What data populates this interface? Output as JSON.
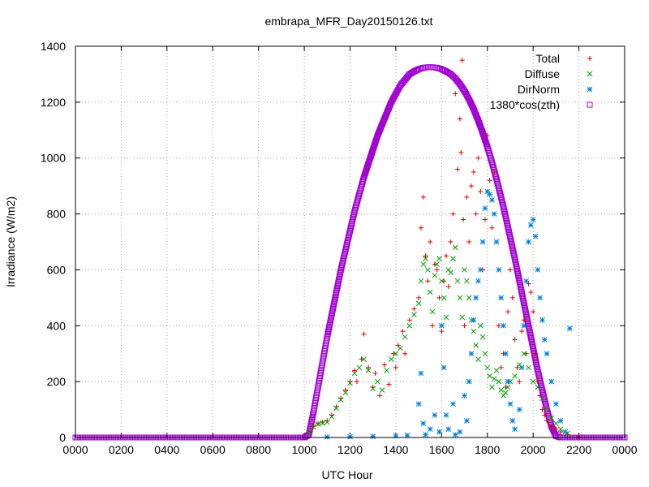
{
  "chart_data": {
    "type": "scatter",
    "title": "embrapa_MFR_Day20150126.txt",
    "xlabel": "UTC Hour",
    "ylabel": "Irradiance (W/m2)",
    "xlim": [
      0,
      24
    ],
    "ylim": [
      0,
      1400
    ],
    "x_ticks": [
      0,
      2,
      4,
      6,
      8,
      10,
      12,
      14,
      16,
      18,
      20,
      22,
      24
    ],
    "x_tick_labels": [
      "0000",
      "0200",
      "0400",
      "0600",
      "0800",
      "1000",
      "1200",
      "1400",
      "1600",
      "1800",
      "2000",
      "2200",
      "0000"
    ],
    "y_ticks": [
      0,
      200,
      400,
      600,
      800,
      1000,
      1200,
      1400
    ],
    "y_tick_labels": [
      "0",
      "200",
      "400",
      "600",
      "800",
      "1000",
      "1200",
      "1400"
    ],
    "grid": true,
    "legend_position": "top-right",
    "series": [
      {
        "name": "Total",
        "marker": "plus",
        "color": "#e00000",
        "points": [
          [
            10.2,
            20
          ],
          [
            10.4,
            40
          ],
          [
            10.6,
            50
          ],
          [
            10.8,
            55
          ],
          [
            11.0,
            60
          ],
          [
            11.2,
            80
          ],
          [
            11.4,
            110
          ],
          [
            11.6,
            140
          ],
          [
            11.8,
            170
          ],
          [
            12.0,
            200
          ],
          [
            12.2,
            240
          ],
          [
            12.3,
            200
          ],
          [
            12.5,
            280
          ],
          [
            12.6,
            370
          ],
          [
            12.8,
            250
          ],
          [
            13.0,
            180
          ],
          [
            13.1,
            230
          ],
          [
            13.3,
            150
          ],
          [
            13.5,
            260
          ],
          [
            13.7,
            190
          ],
          [
            13.9,
            300
          ],
          [
            14.0,
            250
          ],
          [
            14.1,
            330
          ],
          [
            14.3,
            380
          ],
          [
            14.4,
            300
          ],
          [
            14.6,
            420
          ],
          [
            14.8,
            460
          ],
          [
            15.0,
            500
          ],
          [
            15.1,
            750
          ],
          [
            15.2,
            860
          ],
          [
            15.3,
            650
          ],
          [
            15.4,
            560
          ],
          [
            15.5,
            700
          ],
          [
            15.6,
            400
          ],
          [
            15.7,
            620
          ],
          [
            15.8,
            600
          ],
          [
            15.9,
            500
          ],
          [
            16.0,
            380
          ],
          [
            16.1,
            560
          ],
          [
            16.2,
            650
          ],
          [
            16.3,
            540
          ],
          [
            16.4,
            700
          ],
          [
            16.5,
            800
          ],
          [
            16.6,
            1230
          ],
          [
            16.7,
            960
          ],
          [
            16.8,
            1140
          ],
          [
            16.85,
            1020
          ],
          [
            16.9,
            1350
          ],
          [
            16.95,
            780
          ],
          [
            17.0,
            400
          ],
          [
            17.1,
            860
          ],
          [
            17.2,
            700
          ],
          [
            17.3,
            900
          ],
          [
            17.4,
            950
          ],
          [
            17.5,
            800
          ],
          [
            17.6,
            1000
          ],
          [
            17.7,
            880
          ],
          [
            17.8,
            600
          ],
          [
            17.9,
            780
          ],
          [
            18.0,
            1080
          ],
          [
            18.1,
            920
          ],
          [
            18.2,
            750
          ],
          [
            18.3,
            950
          ],
          [
            18.4,
            700
          ],
          [
            18.5,
            400
          ],
          [
            18.6,
            250
          ],
          [
            18.7,
            300
          ],
          [
            18.8,
            180
          ],
          [
            18.9,
            450
          ],
          [
            19.0,
            600
          ],
          [
            19.1,
            500
          ],
          [
            19.2,
            350
          ],
          [
            19.3,
            250
          ],
          [
            19.4,
            200
          ],
          [
            19.5,
            380
          ],
          [
            19.6,
            420
          ],
          [
            19.7,
            300
          ],
          [
            19.8,
            550
          ],
          [
            19.9,
            520
          ],
          [
            20.0,
            450
          ],
          [
            20.1,
            300
          ],
          [
            20.2,
            200
          ],
          [
            20.3,
            150
          ],
          [
            20.4,
            100
          ],
          [
            20.5,
            80
          ],
          [
            20.6,
            60
          ],
          [
            20.8,
            40
          ],
          [
            21.0,
            30
          ],
          [
            21.2,
            20
          ],
          [
            21.5,
            10
          ],
          [
            22.0,
            2
          ]
        ]
      },
      {
        "name": "Diffuse",
        "marker": "cross",
        "color": "#00a000",
        "points": [
          [
            10.2,
            18
          ],
          [
            10.4,
            38
          ],
          [
            10.6,
            48
          ],
          [
            10.8,
            52
          ],
          [
            11.0,
            55
          ],
          [
            11.2,
            75
          ],
          [
            11.4,
            105
          ],
          [
            11.6,
            135
          ],
          [
            11.8,
            160
          ],
          [
            12.0,
            195
          ],
          [
            12.2,
            230
          ],
          [
            12.4,
            250
          ],
          [
            12.6,
            280
          ],
          [
            12.8,
            240
          ],
          [
            13.0,
            175
          ],
          [
            13.2,
            200
          ],
          [
            13.4,
            170
          ],
          [
            13.6,
            240
          ],
          [
            13.8,
            280
          ],
          [
            14.0,
            300
          ],
          [
            14.2,
            320
          ],
          [
            14.4,
            360
          ],
          [
            14.6,
            400
          ],
          [
            14.8,
            440
          ],
          [
            15.0,
            480
          ],
          [
            15.1,
            560
          ],
          [
            15.2,
            620
          ],
          [
            15.3,
            640
          ],
          [
            15.4,
            600
          ],
          [
            15.5,
            520
          ],
          [
            15.6,
            450
          ],
          [
            15.7,
            580
          ],
          [
            15.8,
            620
          ],
          [
            15.9,
            640
          ],
          [
            16.0,
            560
          ],
          [
            16.1,
            500
          ],
          [
            16.2,
            430
          ],
          [
            16.3,
            600
          ],
          [
            16.4,
            590
          ],
          [
            16.5,
            640
          ],
          [
            16.6,
            680
          ],
          [
            16.7,
            560
          ],
          [
            16.8,
            500
          ],
          [
            16.9,
            430
          ],
          [
            17.0,
            600
          ],
          [
            17.1,
            560
          ],
          [
            17.2,
            500
          ],
          [
            17.3,
            420
          ],
          [
            17.4,
            380
          ],
          [
            17.5,
            330
          ],
          [
            17.6,
            280
          ],
          [
            17.7,
            400
          ],
          [
            17.8,
            360
          ],
          [
            17.9,
            300
          ],
          [
            18.0,
            250
          ],
          [
            18.1,
            220
          ],
          [
            18.2,
            180
          ],
          [
            18.3,
            210
          ],
          [
            18.4,
            240
          ],
          [
            18.5,
            200
          ],
          [
            18.6,
            170
          ],
          [
            18.7,
            150
          ],
          [
            18.8,
            160
          ],
          [
            18.9,
            180
          ],
          [
            19.0,
            200
          ],
          [
            19.2,
            220
          ],
          [
            19.4,
            260
          ],
          [
            19.6,
            300
          ],
          [
            19.8,
            250
          ],
          [
            20.0,
            200
          ],
          [
            20.2,
            180
          ],
          [
            20.4,
            140
          ],
          [
            20.6,
            100
          ],
          [
            20.8,
            70
          ],
          [
            21.0,
            50
          ],
          [
            21.2,
            30
          ],
          [
            21.5,
            15
          ]
        ]
      },
      {
        "name": "DirNorm",
        "marker": "star",
        "color": "#0080e0",
        "points": [
          [
            11.0,
            2
          ],
          [
            12.0,
            3
          ],
          [
            13.0,
            4
          ],
          [
            14.0,
            6
          ],
          [
            14.5,
            8
          ],
          [
            15.0,
            120
          ],
          [
            15.1,
            230
          ],
          [
            15.2,
            50
          ],
          [
            15.3,
            10
          ],
          [
            15.5,
            30
          ],
          [
            15.7,
            80
          ],
          [
            15.9,
            20
          ],
          [
            16.0,
            400
          ],
          [
            16.1,
            250
          ],
          [
            16.2,
            80
          ],
          [
            16.3,
            30
          ],
          [
            16.5,
            120
          ],
          [
            16.6,
            10
          ],
          [
            16.8,
            20
          ],
          [
            17.0,
            150
          ],
          [
            17.1,
            60
          ],
          [
            17.2,
            200
          ],
          [
            17.3,
            300
          ],
          [
            17.4,
            420
          ],
          [
            17.5,
            500
          ],
          [
            17.6,
            560
          ],
          [
            17.7,
            600
          ],
          [
            17.8,
            700
          ],
          [
            17.9,
            820
          ],
          [
            18.0,
            880
          ],
          [
            18.1,
            870
          ],
          [
            18.2,
            850
          ],
          [
            18.3,
            800
          ],
          [
            18.4,
            700
          ],
          [
            18.5,
            600
          ],
          [
            18.6,
            500
          ],
          [
            18.7,
            400
          ],
          [
            18.8,
            300
          ],
          [
            18.9,
            200
          ],
          [
            19.0,
            120
          ],
          [
            19.1,
            60
          ],
          [
            19.2,
            30
          ],
          [
            19.4,
            100
          ],
          [
            19.5,
            250
          ],
          [
            19.6,
            400
          ],
          [
            19.7,
            560
          ],
          [
            19.8,
            700
          ],
          [
            19.9,
            760
          ],
          [
            20.0,
            780
          ],
          [
            20.1,
            720
          ],
          [
            20.2,
            600
          ],
          [
            20.3,
            500
          ],
          [
            20.4,
            420
          ],
          [
            20.5,
            350
          ],
          [
            20.6,
            300
          ],
          [
            20.8,
            200
          ],
          [
            21.0,
            120
          ],
          [
            21.2,
            60
          ],
          [
            21.4,
            20
          ],
          [
            21.6,
            390
          ]
        ]
      },
      {
        "name": "1380*cos(zth)",
        "marker": "square",
        "color": "#a000d0",
        "points": [
          [
            0,
            0
          ],
          [
            1,
            0
          ],
          [
            2,
            0
          ],
          [
            3,
            0
          ],
          [
            4,
            0
          ],
          [
            5,
            0
          ],
          [
            6,
            0
          ],
          [
            7,
            0
          ],
          [
            8,
            0
          ],
          [
            9,
            0
          ],
          [
            10,
            0
          ],
          [
            10.2,
            10
          ],
          [
            10.4,
            90
          ],
          [
            10.6,
            180
          ],
          [
            10.8,
            270
          ],
          [
            11.0,
            360
          ],
          [
            11.2,
            440
          ],
          [
            11.4,
            520
          ],
          [
            11.6,
            600
          ],
          [
            11.8,
            670
          ],
          [
            12.0,
            740
          ],
          [
            12.2,
            810
          ],
          [
            12.4,
            870
          ],
          [
            12.6,
            930
          ],
          [
            12.8,
            980
          ],
          [
            13.0,
            1030
          ],
          [
            13.2,
            1080
          ],
          [
            13.4,
            1120
          ],
          [
            13.6,
            1160
          ],
          [
            13.8,
            1200
          ],
          [
            14.0,
            1230
          ],
          [
            14.2,
            1260
          ],
          [
            14.4,
            1280
          ],
          [
            14.6,
            1300
          ],
          [
            14.8,
            1310
          ],
          [
            15.0,
            1318
          ],
          [
            15.2,
            1323
          ],
          [
            15.4,
            1325
          ],
          [
            15.6,
            1325
          ],
          [
            15.8,
            1323
          ],
          [
            16.0,
            1318
          ],
          [
            16.2,
            1310
          ],
          [
            16.4,
            1300
          ],
          [
            16.6,
            1285
          ],
          [
            16.8,
            1265
          ],
          [
            17.0,
            1240
          ],
          [
            17.2,
            1210
          ],
          [
            17.4,
            1175
          ],
          [
            17.6,
            1135
          ],
          [
            17.8,
            1090
          ],
          [
            18.0,
            1040
          ],
          [
            18.2,
            985
          ],
          [
            18.4,
            925
          ],
          [
            18.6,
            860
          ],
          [
            18.8,
            790
          ],
          [
            19.0,
            715
          ],
          [
            19.2,
            640
          ],
          [
            19.4,
            560
          ],
          [
            19.6,
            480
          ],
          [
            19.8,
            400
          ],
          [
            20.0,
            320
          ],
          [
            20.2,
            240
          ],
          [
            20.4,
            170
          ],
          [
            20.6,
            100
          ],
          [
            20.8,
            40
          ],
          [
            21.0,
            5
          ],
          [
            21.2,
            0
          ],
          [
            22,
            0
          ],
          [
            23,
            0
          ],
          [
            24,
            0
          ]
        ]
      }
    ]
  }
}
